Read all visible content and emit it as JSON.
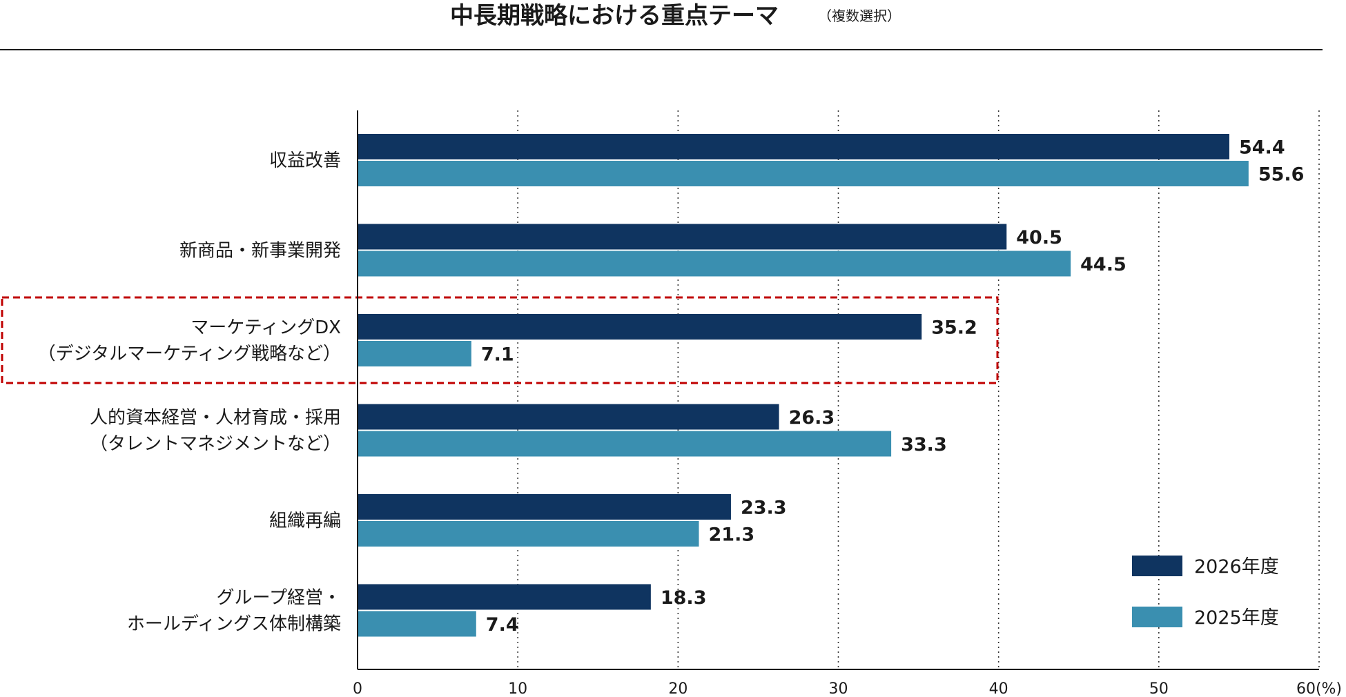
{
  "title": "中長期戦略における重点テーマ",
  "subtitle": "（複数選択）",
  "chart_data": {
    "type": "bar",
    "orientation": "horizontal",
    "title": "中長期戦略における重点テーマ",
    "subtitle": "（複数選択）",
    "categories": [
      [
        "収益改善"
      ],
      [
        "新商品・新事業開発"
      ],
      [
        "マーケティングDX",
        "（デジタルマーケティング戦略など）"
      ],
      [
        "人的資本経営・人材育成・採用",
        "（タレントマネジメントなど）"
      ],
      [
        "組織再編"
      ],
      [
        "グループ経営・",
        "ホールディングス体制構築"
      ]
    ],
    "series": [
      {
        "name": "2026年度",
        "color": "#0f3460",
        "values": [
          54.4,
          40.5,
          35.2,
          26.3,
          23.3,
          18.3
        ]
      },
      {
        "name": "2025年度",
        "color": "#3a8fb0",
        "values": [
          55.6,
          44.5,
          7.1,
          33.3,
          21.3,
          7.4
        ]
      }
    ],
    "xlim": [
      0,
      60
    ],
    "xticks": [
      0,
      10,
      20,
      30,
      40,
      50,
      60
    ],
    "xtick_labels": [
      "0",
      "10",
      "20",
      "30",
      "40",
      "50",
      "60"
    ],
    "unit_label": "(%)",
    "grid": "vertical-dotted",
    "legend_position": "bottom-right",
    "highlighted_category_index": 2,
    "highlight_color": "#c00000"
  }
}
